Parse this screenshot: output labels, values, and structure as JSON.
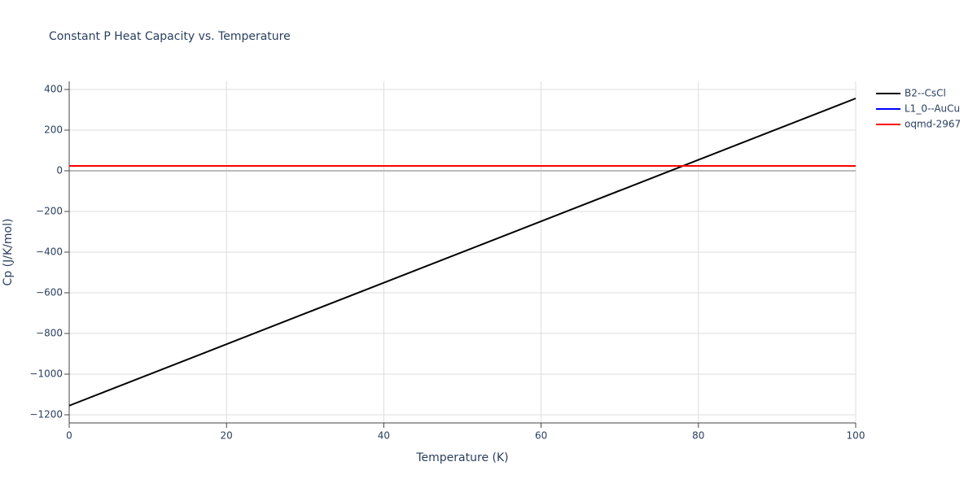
{
  "chart_data": {
    "type": "line",
    "title": "Constant P Heat Capacity vs. Temperature",
    "x_label": "Temperature (K)",
    "y_label": "Cp (J/K/mol)",
    "xlim": [
      0,
      100
    ],
    "ylim": [
      -1240,
      440
    ],
    "xticks": [
      0,
      20,
      40,
      60,
      80,
      100
    ],
    "yticks": [
      {
        "value": -1200,
        "label": "−1200"
      },
      {
        "value": -1000,
        "label": "−1000"
      },
      {
        "value": -800,
        "label": "−800"
      },
      {
        "value": -600,
        "label": "−600"
      },
      {
        "value": -400,
        "label": "−400"
      },
      {
        "value": -200,
        "label": "−200"
      },
      0,
      200,
      400
    ],
    "grid": true,
    "legend": "right",
    "series": [
      {
        "name": "B2--CsCl",
        "color": "#000000",
        "x": [
          0,
          100
        ],
        "values": [
          -1155,
          356
        ]
      },
      {
        "name": "L1_0--AuCu",
        "color": "#0000ff",
        "x": [
          0,
          100
        ],
        "values": [
          24,
          24
        ]
      },
      {
        "name": "oqmd-2967",
        "color": "#ff0000",
        "x": [
          0,
          100
        ],
        "values": [
          24,
          24
        ]
      }
    ]
  }
}
